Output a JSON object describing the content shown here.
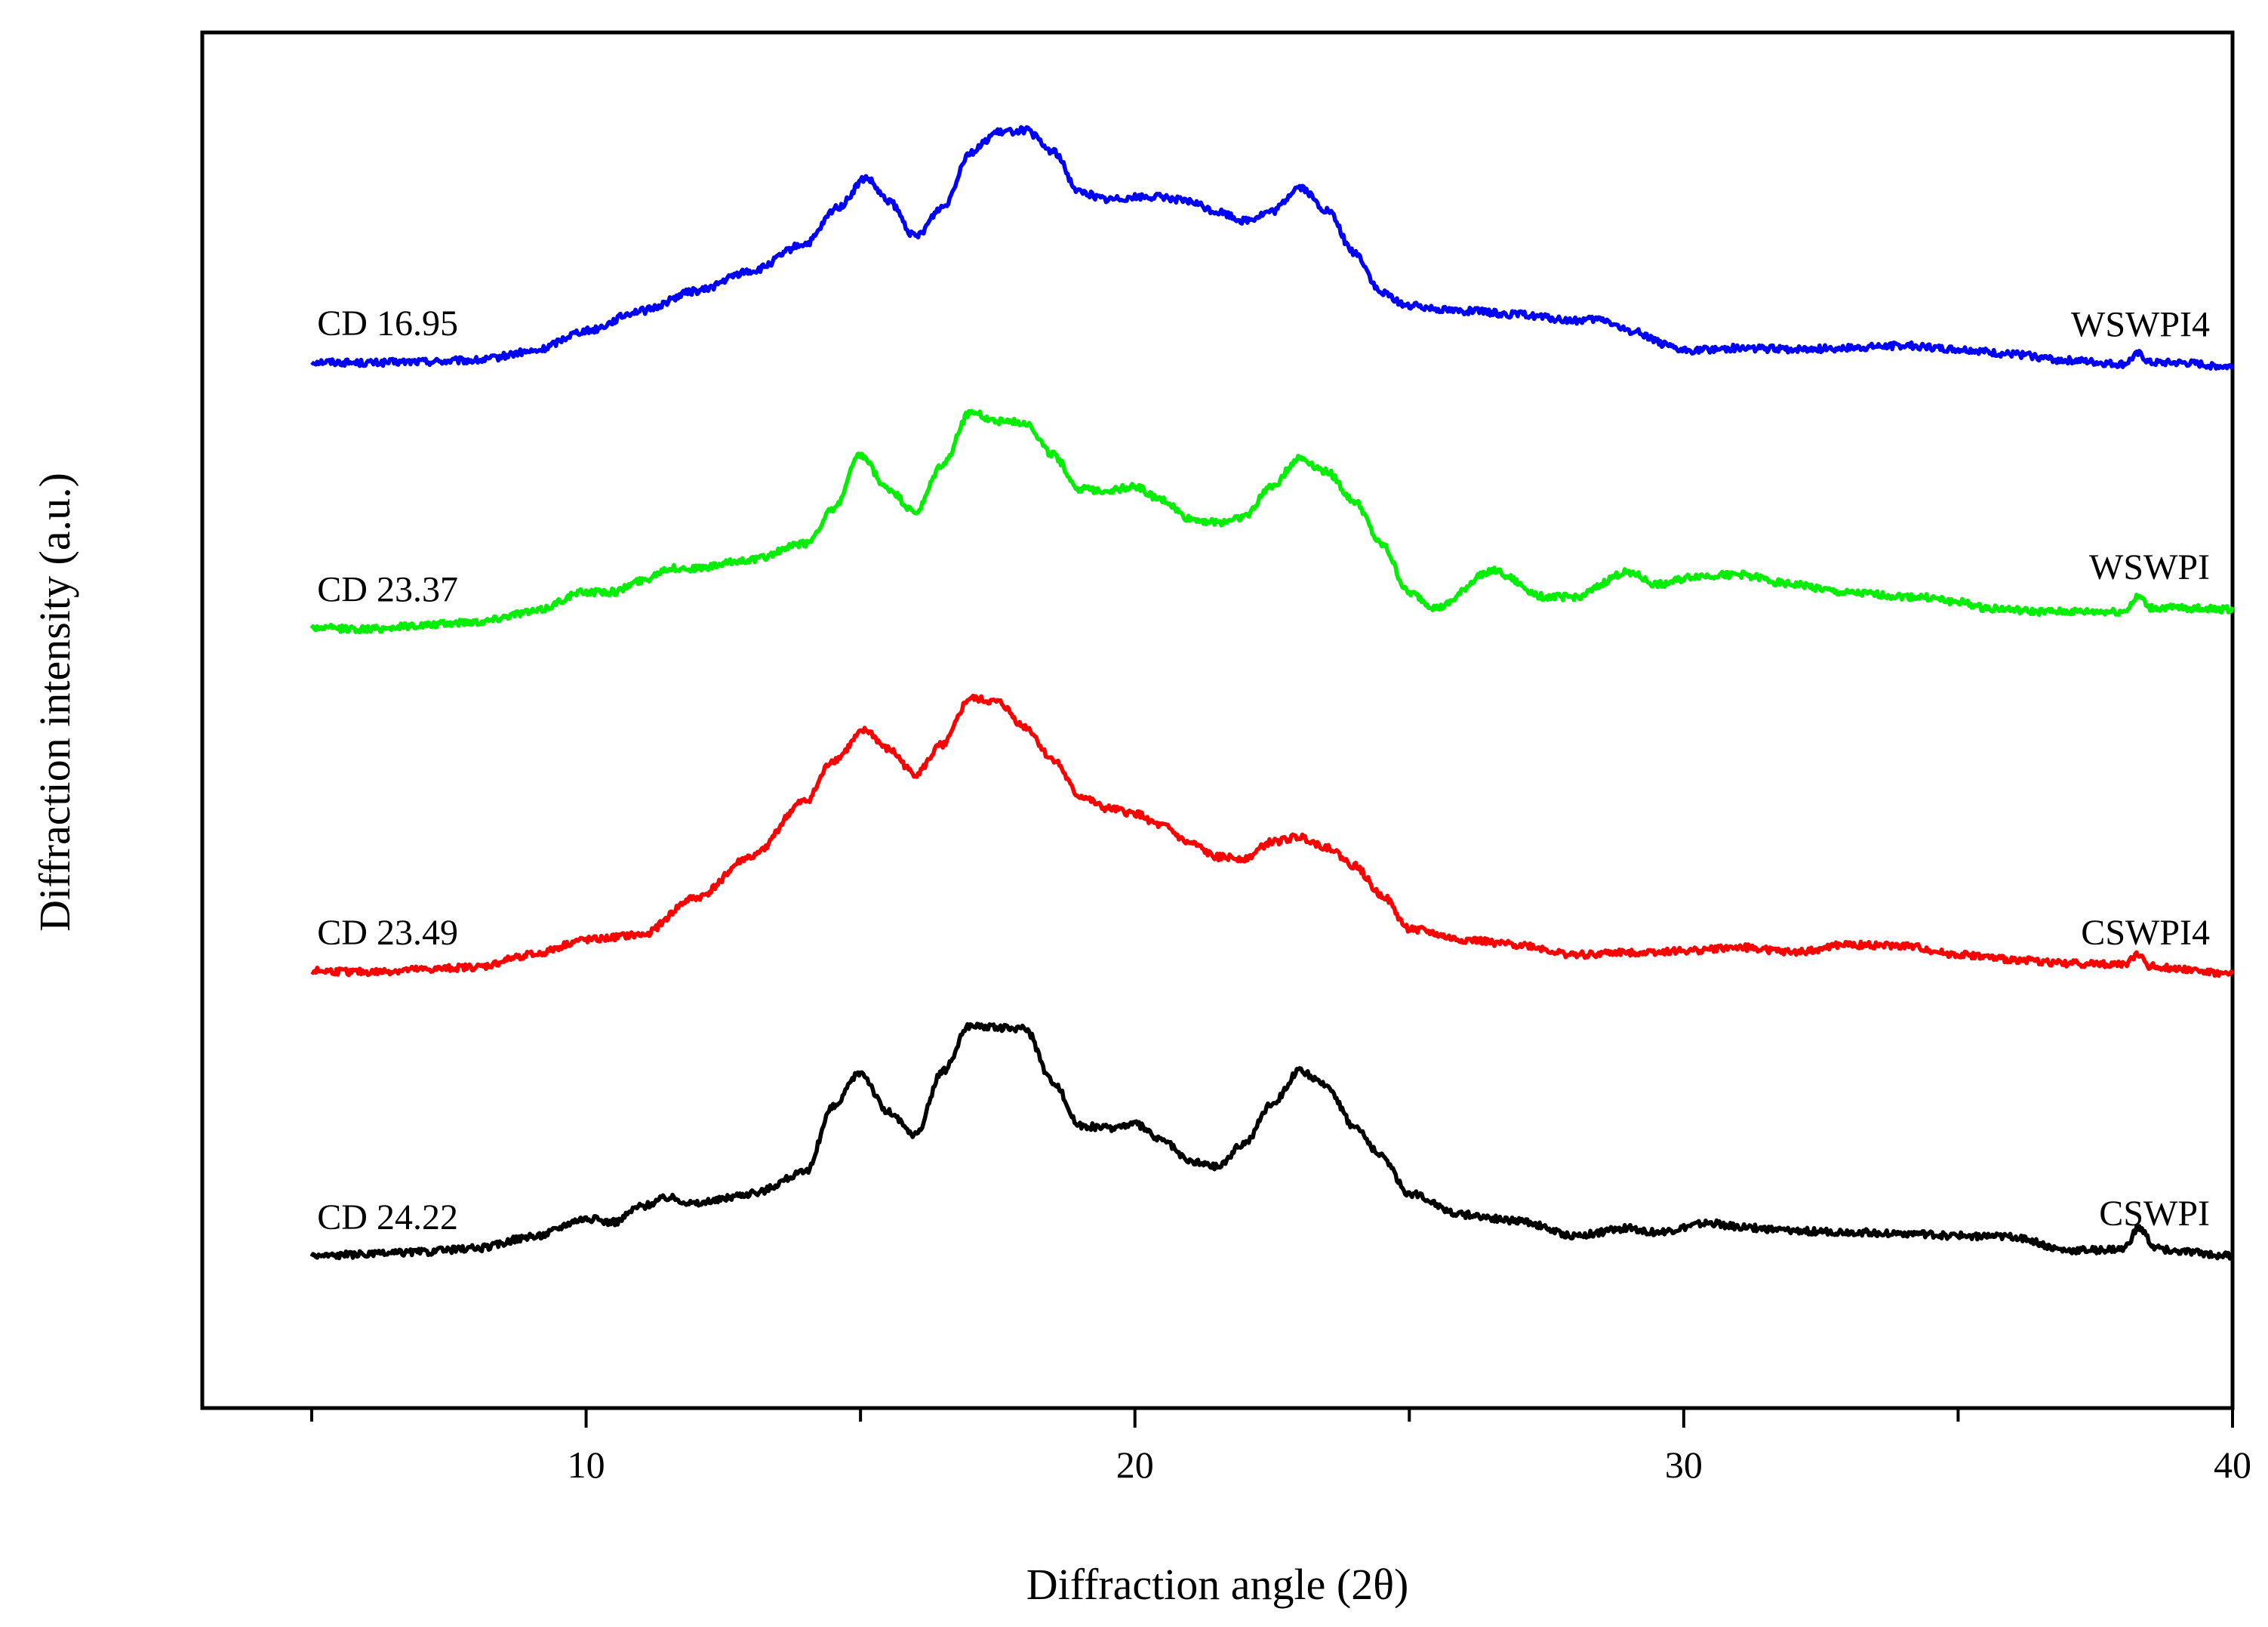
{
  "chart_data": {
    "type": "line",
    "title": "",
    "xlabel": "Diffraction angle (2θ)",
    "ylabel": "Diffraction intensity (a.u.)",
    "xlim": [
      3,
      40
    ],
    "ylim": [
      0,
      100
    ],
    "x_ticks": [
      10,
      20,
      30,
      40
    ],
    "x_minor_ticks": [
      5,
      15,
      25,
      35
    ],
    "grid": false,
    "legend": "none (inline labels at right end of each curve)",
    "series": [
      {
        "name": "WSWPI4",
        "cd_label": "CD 16.95",
        "color": "#0000ff",
        "x": [
          5,
          6,
          7,
          8,
          9,
          10,
          11,
          12,
          13,
          14,
          14.6,
          15.1,
          15.5,
          16,
          16.5,
          17,
          17.5,
          18,
          18.5,
          19,
          19.5,
          20,
          20.5,
          21,
          21.5,
          22,
          22.5,
          23,
          23.5,
          24,
          24.5,
          25,
          26,
          27,
          28,
          28.5,
          29,
          30,
          31,
          32,
          33,
          34,
          35,
          36,
          37,
          38,
          38.3,
          38.5,
          39,
          40
        ],
        "y": [
          77.5,
          77.4,
          77.5,
          77.6,
          78.3,
          80.0,
          81.6,
          83.2,
          84.8,
          87.0,
          90.0,
          92.3,
          90.5,
          87.6,
          90.0,
          94.4,
          96.0,
          96.2,
          94.5,
          91.2,
          90.6,
          90.8,
          90.8,
          90.4,
          89.6,
          88.9,
          89.6,
          91.6,
          89.7,
          86.3,
          83.0,
          82.0,
          81.6,
          81.3,
          80.8,
          80.9,
          80.0,
          78.4,
          78.6,
          78.5,
          78.6,
          78.8,
          78.5,
          78.1,
          77.6,
          77.3,
          78.1,
          77.4,
          77.4,
          77.1
        ]
      },
      {
        "name": "WSWPI",
        "cd_label": "CD  23.37",
        "color": "#00ee00",
        "x": [
          5,
          6,
          7,
          8,
          9,
          10,
          10.5,
          11,
          11.5,
          12,
          13,
          14,
          14.5,
          15,
          15.5,
          16,
          16.5,
          17,
          17.5,
          18,
          18.5,
          19,
          19.5,
          20,
          20.5,
          21,
          21.5,
          22,
          22.5,
          23,
          23.5,
          24,
          24.5,
          25,
          25.5,
          26.5,
          27.5,
          28,
          29,
          29.5,
          30.3,
          31,
          32,
          33,
          34.3,
          35,
          35.5,
          36.5,
          38,
          38.3,
          38.5,
          39,
          40
        ],
        "y": [
          56.0,
          55.9,
          56.2,
          56.5,
          57.3,
          58.9,
          58.9,
          59.8,
          60.8,
          60.8,
          61.5,
          62.8,
          65.5,
          69.9,
          67.2,
          65.3,
          69.2,
          73.4,
          72.7,
          72.6,
          70.0,
          67.2,
          67.1,
          67.4,
          66.3,
          64.8,
          64.5,
          65.0,
          67.5,
          69.7,
          68.6,
          66.2,
          62.7,
          58.8,
          57.6,
          60.6,
          58.5,
          58.5,
          60.5,
          59.5,
          60.2,
          60.3,
          59.5,
          58.8,
          58.5,
          58.1,
          57.6,
          57.3,
          57.3,
          58.5,
          57.6,
          57.6,
          57.5
        ]
      },
      {
        "name": "CSWPI4",
        "cd_label": "CD 23.49",
        "color": "#ff0000",
        "x": [
          5,
          6,
          7,
          8,
          9,
          10,
          11,
          12,
          13,
          14,
          14.5,
          15.1,
          15.5,
          16,
          16.5,
          17,
          17.5,
          18,
          18.5,
          19,
          19.5,
          20,
          20.5,
          21,
          21.5,
          22,
          22.5,
          23,
          23.5,
          24,
          24.5,
          25,
          26,
          27,
          28,
          29,
          30,
          31,
          32,
          33,
          34,
          35,
          36,
          37,
          38,
          38.3,
          38.5,
          39,
          40
        ],
        "y": [
          28.3,
          28.2,
          28.4,
          28.6,
          29.6,
          30.8,
          31.2,
          34.2,
          37.5,
          42.0,
          45.3,
          47.7,
          46.2,
          44.2,
          46.6,
          50.3,
          50.0,
          48.0,
          45.4,
          42.4,
          41.4,
          41.0,
          40.0,
          38.6,
          37.5,
          37.4,
          38.7,
          39.1,
          38.3,
          36.8,
          34.4,
          31.7,
          30.8,
          30.4,
          29.6,
          29.8,
          29.9,
          30.2,
          29.8,
          30.4,
          30.3,
          29.6,
          29.2,
          28.9,
          28.8,
          29.6,
          28.7,
          28.5,
          28.0
        ]
      },
      {
        "name": "CSWPI",
        "cd_label": "CD 24.22",
        "color": "#000000",
        "x": [
          5,
          6,
          7,
          8,
          9,
          10,
          10.5,
          11,
          11.5,
          12,
          13,
          14,
          14.5,
          15,
          15.5,
          16,
          16.5,
          17,
          17.5,
          18,
          18.5,
          19,
          19.5,
          20,
          20.5,
          21,
          21.5,
          22,
          22.5,
          23,
          23.5,
          24,
          24.5,
          25,
          26,
          27,
          28,
          29,
          29.5,
          30.5,
          31,
          32,
          33,
          34,
          35,
          36,
          37,
          38,
          38.3,
          38.6,
          39,
          40
        ],
        "y": [
          5.3,
          5.4,
          5.6,
          5.9,
          6.8,
          8.3,
          8.0,
          9.3,
          10.0,
          9.5,
          10.3,
          12.0,
          17.3,
          20.1,
          16.9,
          15.0,
          20.2,
          23.9,
          23.7,
          23.6,
          19.4,
          15.8,
          15.6,
          15.9,
          14.6,
          12.9,
          12.5,
          14.4,
          17.6,
          20.2,
          19.0,
          15.7,
          13.3,
          10.3,
          8.6,
          8.1,
          6.9,
          7.5,
          7.2,
          7.9,
          7.6,
          7.3,
          7.2,
          7.1,
          6.9,
          6.8,
          5.7,
          5.8,
          7.5,
          5.9,
          5.6,
          5.3
        ]
      }
    ]
  }
}
